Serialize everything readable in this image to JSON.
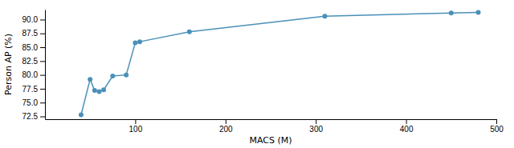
{
  "chart_data": {
    "type": "line",
    "x": [
      40,
      50,
      55,
      60,
      65,
      75,
      90,
      100,
      105,
      160,
      310,
      450,
      480
    ],
    "values": [
      72.8,
      79.2,
      77.2,
      77.0,
      77.3,
      79.8,
      80.0,
      85.8,
      86.0,
      87.8,
      90.6,
      91.2,
      91.3
    ],
    "xlabel": "MACS (M)",
    "ylabel": "Person AP (%)",
    "xlim": [
      0,
      500
    ],
    "ylim": [
      72.0,
      91.8
    ],
    "xticks": [
      100,
      200,
      300,
      400,
      500
    ],
    "yticks": [
      72.5,
      {
        "value": 75,
        "label": "75.0"
      },
      77.5,
      {
        "value": 80,
        "label": "80.0"
      },
      82.5,
      {
        "value": 85,
        "label": "85.0"
      },
      87.5,
      {
        "value": 90,
        "label": "90.0"
      }
    ],
    "color": "#4a90b8",
    "marker": "circle",
    "grid": false
  }
}
